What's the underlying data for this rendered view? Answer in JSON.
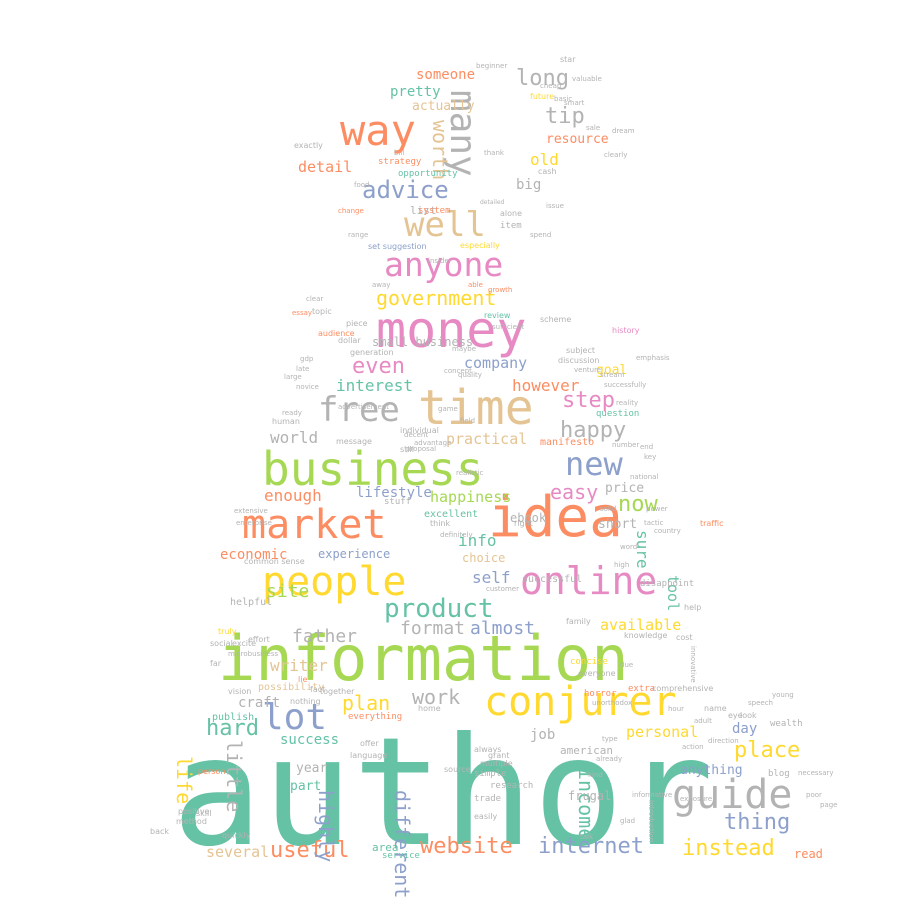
{
  "palette": {
    "teal": "#66c2a5",
    "orange": "#fc8d62",
    "blue": "#8da0cb",
    "pink": "#e78ac3",
    "green": "#a6d854",
    "yellow": "#ffd92f",
    "tan": "#e5c494",
    "gray": "#b3b3b3"
  },
  "words": [
    {
      "text": "author",
      "color": "teal",
      "weight": 100
    },
    {
      "text": "information",
      "color": "green",
      "weight": 60
    },
    {
      "text": "business",
      "color": "green",
      "weight": 45
    },
    {
      "text": "money",
      "color": "pink",
      "weight": 42
    },
    {
      "text": "idea",
      "color": "orange",
      "weight": 42
    },
    {
      "text": "market",
      "color": "orange",
      "weight": 36
    },
    {
      "text": "people",
      "color": "yellow",
      "weight": 34
    },
    {
      "text": "online",
      "color": "pink",
      "weight": 32
    },
    {
      "text": "time",
      "color": "tan",
      "weight": 44
    },
    {
      "text": "way",
      "color": "orange",
      "weight": 34
    },
    {
      "text": "conjurer",
      "color": "yellow",
      "weight": 32
    },
    {
      "text": "guide",
      "color": "gray",
      "weight": 33
    },
    {
      "text": "anyone",
      "color": "pink",
      "weight": 26
    },
    {
      "text": "well",
      "color": "tan",
      "weight": 28
    },
    {
      "text": "many",
      "color": "gray",
      "weight": 28
    },
    {
      "text": "new",
      "color": "blue",
      "weight": 26
    },
    {
      "text": "free",
      "color": "gray",
      "weight": 28
    },
    {
      "text": "lot",
      "color": "blue",
      "weight": 28
    },
    {
      "text": "product",
      "color": "teal",
      "weight": 22
    },
    {
      "text": "advice",
      "color": "blue",
      "weight": 20
    },
    {
      "text": "government",
      "color": "yellow",
      "weight": 19
    },
    {
      "text": "step",
      "color": "pink",
      "weight": 19
    },
    {
      "text": "happy",
      "color": "gray",
      "weight": 19
    },
    {
      "text": "easy",
      "color": "pink",
      "weight": 18
    },
    {
      "text": "now",
      "color": "green",
      "weight": 18
    },
    {
      "text": "even",
      "color": "pink",
      "weight": 19
    },
    {
      "text": "hard",
      "color": "teal",
      "weight": 19
    },
    {
      "text": "plan",
      "color": "yellow",
      "weight": 18
    },
    {
      "text": "useful",
      "color": "orange",
      "weight": 18
    },
    {
      "text": "website",
      "color": "orange",
      "weight": 18
    },
    {
      "text": "internet",
      "color": "blue",
      "weight": 18
    },
    {
      "text": "instead",
      "color": "yellow",
      "weight": 18
    },
    {
      "text": "thing",
      "color": "blue",
      "weight": 18
    },
    {
      "text": "place",
      "color": "yellow",
      "weight": 18
    },
    {
      "text": "income",
      "color": "teal",
      "weight": 18
    },
    {
      "text": "different",
      "color": "blue",
      "weight": 17
    },
    {
      "text": "highly",
      "color": "blue",
      "weight": 17
    },
    {
      "text": "little",
      "color": "gray",
      "weight": 17
    },
    {
      "text": "life",
      "color": "yellow",
      "weight": 17
    },
    {
      "text": "worth",
      "color": "tan",
      "weight": 17
    },
    {
      "text": "tip",
      "color": "gray",
      "weight": 19
    },
    {
      "text": "long",
      "color": "gray",
      "weight": 17
    },
    {
      "text": "work",
      "color": "gray",
      "weight": 17
    },
    {
      "text": "format",
      "color": "gray",
      "weight": 16
    },
    {
      "text": "almost",
      "color": "blue",
      "weight": 15
    },
    {
      "text": "site",
      "color": "green",
      "weight": 16
    },
    {
      "text": "father",
      "color": "gray",
      "weight": 15
    },
    {
      "text": "writer",
      "color": "tan",
      "weight": 14
    },
    {
      "text": "enough",
      "color": "orange",
      "weight": 14
    },
    {
      "text": "interest",
      "color": "teal",
      "weight": 14
    },
    {
      "text": "however",
      "color": "orange",
      "weight": 14
    },
    {
      "text": "company",
      "color": "blue",
      "weight": 13
    },
    {
      "text": "world",
      "color": "gray",
      "weight": 14
    },
    {
      "text": "practical",
      "color": "tan",
      "weight": 13
    },
    {
      "text": "happiness",
      "color": "green",
      "weight": 13
    },
    {
      "text": "lifestyle",
      "color": "blue",
      "weight": 12
    },
    {
      "text": "economic",
      "color": "orange",
      "weight": 12
    },
    {
      "text": "info",
      "color": "teal",
      "weight": 13
    },
    {
      "text": "sure",
      "color": "teal",
      "weight": 14
    },
    {
      "text": "tool",
      "color": "teal",
      "weight": 13
    },
    {
      "text": "self",
      "color": "blue",
      "weight": 13
    },
    {
      "text": "available",
      "color": "yellow",
      "weight": 12
    },
    {
      "text": "personal",
      "color": "yellow",
      "weight": 13
    },
    {
      "text": "success",
      "color": "teal",
      "weight": 12
    },
    {
      "text": "craft",
      "color": "gray",
      "weight": 12
    },
    {
      "text": "job",
      "color": "gray",
      "weight": 12
    },
    {
      "text": "day",
      "color": "blue",
      "weight": 12
    },
    {
      "text": "anything",
      "color": "blue",
      "weight": 11
    },
    {
      "text": "several",
      "color": "tan",
      "weight": 13
    },
    {
      "text": "detail",
      "color": "orange",
      "weight": 13
    },
    {
      "text": "someone",
      "color": "orange",
      "weight": 12
    },
    {
      "text": "pretty",
      "color": "teal",
      "weight": 12
    },
    {
      "text": "actually",
      "color": "tan",
      "weight": 11
    },
    {
      "text": "resource",
      "color": "orange",
      "weight": 11
    },
    {
      "text": "old",
      "color": "yellow",
      "weight": 13
    },
    {
      "text": "big",
      "color": "gray",
      "weight": 12
    },
    {
      "text": "small business",
      "color": "gray",
      "weight": 10
    },
    {
      "text": "goal",
      "color": "yellow",
      "weight": 11
    },
    {
      "text": "price",
      "color": "gray",
      "weight": 11
    },
    {
      "text": "experience",
      "color": "blue",
      "weight": 10
    },
    {
      "text": "short",
      "color": "gray",
      "weight": 11
    },
    {
      "text": "ebook",
      "color": "gray",
      "weight": 10
    },
    {
      "text": "year",
      "color": "gray",
      "weight": 11
    },
    {
      "text": "part",
      "color": "teal",
      "weight": 11
    },
    {
      "text": "read",
      "color": "orange",
      "weight": 10
    },
    {
      "text": "blog",
      "color": "gray",
      "weight": 8
    },
    {
      "text": "choice",
      "color": "tan",
      "weight": 10
    },
    {
      "text": "successful",
      "color": "gray",
      "weight": 8
    },
    {
      "text": "excellent",
      "color": "teal",
      "weight": 8
    },
    {
      "text": "list",
      "color": "gray",
      "weight": 9
    },
    {
      "text": "system",
      "color": "orange",
      "weight": 7
    },
    {
      "text": "item",
      "color": "gray",
      "weight": 7
    },
    {
      "text": "strategy",
      "color": "orange",
      "weight": 7
    },
    {
      "text": "opportunity",
      "color": "teal",
      "weight": 7
    },
    {
      "text": "manifesto",
      "color": "orange",
      "weight": 7
    },
    {
      "text": "question",
      "color": "teal",
      "weight": 7
    },
    {
      "text": "helpful",
      "color": "gray",
      "weight": 7
    },
    {
      "text": "possibility",
      "color": "tan",
      "weight": 7
    },
    {
      "text": "publish",
      "color": "teal",
      "weight": 7
    },
    {
      "text": "american",
      "color": "gray",
      "weight": 8
    },
    {
      "text": "research",
      "color": "gray",
      "weight": 7
    },
    {
      "text": "simple",
      "color": "gray",
      "weight": 7
    },
    {
      "text": "trade",
      "color": "gray",
      "weight": 7
    },
    {
      "text": "frugal",
      "color": "gray",
      "weight": 8
    },
    {
      "text": "area",
      "color": "teal",
      "weight": 8
    },
    {
      "text": "service",
      "color": "teal",
      "weight": 7
    },
    {
      "text": "everything",
      "color": "orange",
      "weight": 7
    },
    {
      "text": "individual",
      "color": "gray",
      "weight": 7
    },
    {
      "text": "human",
      "color": "gray",
      "weight": 7
    },
    {
      "text": "audience",
      "color": "orange",
      "weight": 7
    },
    {
      "text": "generation",
      "color": "gray",
      "weight": 7
    },
    {
      "text": "dollar",
      "color": "gray",
      "weight": 7
    },
    {
      "text": "piece",
      "color": "gray",
      "weight": 7
    },
    {
      "text": "topic",
      "color": "gray",
      "weight": 7
    },
    {
      "text": "set suggestion",
      "color": "blue",
      "weight": 7
    },
    {
      "text": "especially",
      "color": "yellow",
      "weight": 7
    },
    {
      "text": "alone",
      "color": "gray",
      "weight": 7
    },
    {
      "text": "cash",
      "color": "gray",
      "weight": 7
    },
    {
      "text": "future",
      "color": "yellow",
      "weight": 6
    },
    {
      "text": "sale",
      "color": "gray",
      "weight": 6
    },
    {
      "text": "star",
      "color": "gray",
      "weight": 6
    },
    {
      "text": "exactly",
      "color": "gray",
      "weight": 6
    },
    {
      "text": "growth",
      "color": "orange",
      "weight": 6
    },
    {
      "text": "able",
      "color": "orange",
      "weight": 6
    },
    {
      "text": "review",
      "color": "teal",
      "weight": 6
    },
    {
      "text": "scheme",
      "color": "gray",
      "weight": 6
    },
    {
      "text": "discussion",
      "color": "gray",
      "weight": 6
    },
    {
      "text": "subject",
      "color": "gray",
      "weight": 6
    },
    {
      "text": "venture",
      "color": "gray",
      "weight": 6
    },
    {
      "text": "history",
      "color": "pink",
      "weight": 6
    },
    {
      "text": "emphasis",
      "color": "gray",
      "weight": 6
    },
    {
      "text": "family",
      "color": "gray",
      "weight": 6
    },
    {
      "text": "knowledge",
      "color": "gray",
      "weight": 6
    },
    {
      "text": "cost",
      "color": "gray",
      "weight": 6
    },
    {
      "text": "help",
      "color": "gray",
      "weight": 6
    },
    {
      "text": "traffic",
      "color": "orange",
      "weight": 6
    },
    {
      "text": "concise",
      "color": "yellow",
      "weight": 6
    },
    {
      "text": "everyone",
      "color": "gray",
      "weight": 6
    },
    {
      "text": "extra",
      "color": "orange",
      "weight": 6
    },
    {
      "text": "comprehensive",
      "color": "gray",
      "weight": 6
    },
    {
      "text": "home",
      "color": "gray",
      "weight": 6
    },
    {
      "text": "horror",
      "color": "orange",
      "weight": 6
    },
    {
      "text": "wealth",
      "color": "gray",
      "weight": 6
    },
    {
      "text": "name",
      "color": "gray",
      "weight": 6
    },
    {
      "text": "adult",
      "color": "gray",
      "weight": 6
    },
    {
      "text": "eye",
      "color": "gray",
      "weight": 6
    },
    {
      "text": "look",
      "color": "gray",
      "weight": 6
    },
    {
      "text": "hour",
      "color": "gray",
      "weight": 6
    },
    {
      "text": "action",
      "color": "gray",
      "weight": 6
    },
    {
      "text": "direction",
      "color": "gray",
      "weight": 6
    },
    {
      "text": "necessary",
      "color": "gray",
      "weight": 6
    },
    {
      "text": "speech",
      "color": "gray",
      "weight": 5
    },
    {
      "text": "young",
      "color": "gray",
      "weight": 5
    },
    {
      "text": "poor",
      "color": "gray",
      "weight": 6
    },
    {
      "text": "page",
      "color": "gray",
      "weight": 5
    },
    {
      "text": "grant",
      "color": "gray",
      "weight": 6
    },
    {
      "text": "source",
      "color": "gray",
      "weight": 6
    },
    {
      "text": "multiple",
      "color": "gray",
      "weight": 6
    },
    {
      "text": "easily",
      "color": "gray",
      "weight": 6
    },
    {
      "text": "always",
      "color": "gray",
      "weight": 6
    },
    {
      "text": "language",
      "color": "gray",
      "weight": 6
    },
    {
      "text": "offer",
      "color": "gray",
      "weight": 6
    },
    {
      "text": "quickly",
      "color": "gray",
      "weight": 6
    },
    {
      "text": "skill",
      "color": "gray",
      "weight": 6
    },
    {
      "text": "person",
      "color": "orange",
      "weight": 6
    },
    {
      "text": "method",
      "color": "gray",
      "weight": 6
    },
    {
      "text": "positive",
      "color": "gray",
      "weight": 6
    },
    {
      "text": "back",
      "color": "gray",
      "weight": 7
    },
    {
      "text": "together",
      "color": "gray",
      "weight": 6
    },
    {
      "text": "fact",
      "color": "gray",
      "weight": 6
    },
    {
      "text": "nothing",
      "color": "gray",
      "weight": 6
    },
    {
      "text": "lie",
      "color": "orange",
      "weight": 6
    },
    {
      "text": "vision",
      "color": "gray",
      "weight": 6
    },
    {
      "text": "social",
      "color": "gray",
      "weight": 6
    },
    {
      "text": "excite",
      "color": "gray",
      "weight": 6
    },
    {
      "text": "far",
      "color": "gray",
      "weight": 6
    },
    {
      "text": "truly",
      "color": "yellow",
      "weight": 6
    },
    {
      "text": "effort",
      "color": "gray",
      "weight": 6
    },
    {
      "text": "microbusiness",
      "color": "gray",
      "weight": 6
    },
    {
      "text": "common sense",
      "color": "gray",
      "weight": 6
    },
    {
      "text": "enterprise",
      "color": "gray",
      "weight": 6
    },
    {
      "text": "extensive",
      "color": "gray",
      "weight": 6
    },
    {
      "text": "ready",
      "color": "gray",
      "weight": 6
    },
    {
      "text": "advertisement",
      "color": "gray",
      "weight": 5
    },
    {
      "text": "quality",
      "color": "gray",
      "weight": 5
    },
    {
      "text": "novice",
      "color": "gray",
      "weight": 5
    },
    {
      "text": "large",
      "color": "gray",
      "weight": 5
    },
    {
      "text": "late",
      "color": "gray",
      "weight": 5
    },
    {
      "text": "gdp",
      "color": "gray",
      "weight": 5
    },
    {
      "text": "clear",
      "color": "gray",
      "weight": 5
    },
    {
      "text": "essay",
      "color": "orange",
      "weight": 5
    },
    {
      "text": "away",
      "color": "gray",
      "weight": 5
    },
    {
      "text": "range",
      "color": "gray",
      "weight": 5
    },
    {
      "text": "change",
      "color": "orange",
      "weight": 5
    },
    {
      "text": "food",
      "color": "gray",
      "weight": 5
    },
    {
      "text": "bill",
      "color": "gray",
      "weight": 5
    },
    {
      "text": "smart",
      "color": "gray",
      "weight": 5
    },
    {
      "text": "cheap",
      "color": "gray",
      "weight": 5
    },
    {
      "text": "basic",
      "color": "gray",
      "weight": 5
    },
    {
      "text": "valuable",
      "color": "gray",
      "weight": 5
    },
    {
      "text": "clearly",
      "color": "gray",
      "weight": 5
    },
    {
      "text": "dream",
      "color": "gray",
      "weight": 5
    },
    {
      "text": "issue",
      "color": "gray",
      "weight": 5
    },
    {
      "text": "spend",
      "color": "gray",
      "weight": 5
    },
    {
      "text": "beginner",
      "color": "gray",
      "weight": 5
    },
    {
      "text": "thank",
      "color": "gray",
      "weight": 5
    },
    {
      "text": "detailed",
      "color": "gray",
      "weight": 5
    },
    {
      "text": "stuff",
      "color": "gray",
      "weight": 6
    },
    {
      "text": "think",
      "color": "gray",
      "weight": 6
    },
    {
      "text": "definitely",
      "color": "gray",
      "weight": 5
    },
    {
      "text": "right",
      "color": "gray",
      "weight": 5
    },
    {
      "text": "customer",
      "color": "gray",
      "weight": 5
    },
    {
      "text": "still",
      "color": "gray",
      "weight": 6
    },
    {
      "text": "message",
      "color": "gray",
      "weight": 6
    },
    {
      "text": "game",
      "color": "gray",
      "weight": 5
    },
    {
      "text": "field",
      "color": "gray",
      "weight": 5
    },
    {
      "text": "maybe",
      "color": "gray",
      "weight": 5
    },
    {
      "text": "end",
      "color": "gray",
      "weight": 5
    },
    {
      "text": "key",
      "color": "gray",
      "weight": 5
    },
    {
      "text": "word",
      "color": "gray",
      "weight": 5
    },
    {
      "text": "high",
      "color": "gray",
      "weight": 5
    },
    {
      "text": "disappoint",
      "color": "gray",
      "weight": 6
    },
    {
      "text": "solid",
      "color": "gray",
      "weight": 5
    },
    {
      "text": "tactic",
      "color": "gray",
      "weight": 5
    },
    {
      "text": "power",
      "color": "gray",
      "weight": 5
    },
    {
      "text": "country",
      "color": "gray",
      "weight": 5
    },
    {
      "text": "due",
      "color": "gray",
      "weight": 5
    },
    {
      "text": "type",
      "color": "gray",
      "weight": 5
    },
    {
      "text": "kind",
      "color": "gray",
      "weight": 5
    },
    {
      "text": "already",
      "color": "gray",
      "weight": 5
    },
    {
      "text": "glad",
      "color": "gray",
      "weight": 5
    },
    {
      "text": "talk",
      "color": "gray",
      "weight": 5
    },
    {
      "text": "national",
      "color": "gray",
      "weight": 5
    },
    {
      "text": "reality",
      "color": "gray",
      "weight": 5
    },
    {
      "text": "successfully",
      "color": "gray",
      "weight": 5
    },
    {
      "text": "stream",
      "color": "gray",
      "weight": 5
    },
    {
      "text": "concept",
      "color": "gray",
      "weight": 5
    },
    {
      "text": "realistic",
      "color": "gray",
      "weight": 5
    },
    {
      "text": "decent",
      "color": "gray",
      "weight": 5
    },
    {
      "text": "advantage",
      "color": "gray",
      "weight": 5
    },
    {
      "text": "proposal",
      "color": "gray",
      "weight": 5
    },
    {
      "text": "number",
      "color": "gray",
      "weight": 5
    },
    {
      "text": "innovative",
      "color": "gray",
      "weight": 5
    },
    {
      "text": "unorthodox",
      "color": "gray",
      "weight": 5
    },
    {
      "text": "informative",
      "color": "gray",
      "weight": 5
    },
    {
      "text": "introduction",
      "color": "gray",
      "weight": 5
    },
    {
      "text": "exposure",
      "color": "gray",
      "weight": 5
    },
    {
      "text": "insider",
      "color": "gray",
      "weight": 5
    },
    {
      "text": "sufficient",
      "color": "gray",
      "weight": 5
    }
  ]
}
